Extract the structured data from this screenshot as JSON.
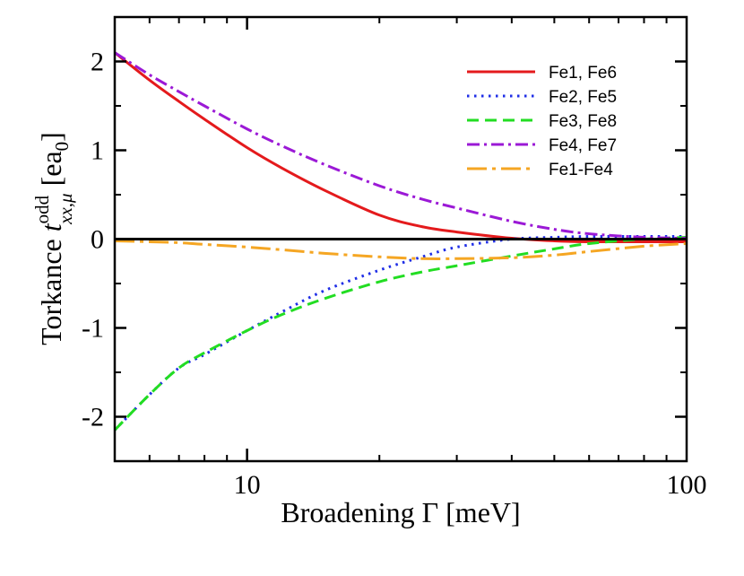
{
  "chart_data": {
    "type": "line",
    "xscale": "log",
    "xlim": [
      5,
      100
    ],
    "ylim": [
      -2.5,
      2.5
    ],
    "xticks": [
      {
        "value": 10,
        "label": "10"
      },
      {
        "value": 100,
        "label": "100"
      }
    ],
    "yticks": [
      {
        "value": 2,
        "label": "2"
      },
      {
        "value": 1,
        "label": "1"
      },
      {
        "value": 0,
        "label": "0"
      },
      {
        "value": -1,
        "label": "-1"
      },
      {
        "value": -2,
        "label": "-2"
      }
    ],
    "xlabel": "Broadening Γ [meV]",
    "ylabel": {
      "prefix": "Torkance ",
      "symbol": "t",
      "superscript": "odd",
      "subscript": "xx,μ",
      "unit_open": " [ea",
      "unit_sub": "0",
      "unit_close": "]"
    },
    "zero_line": true,
    "legend_position": "top-right",
    "series": [
      {
        "name": "Fe1, Fe6",
        "color": "#e41a1c",
        "style": "solid",
        "x": [
          5,
          6,
          7,
          8,
          10,
          12,
          15,
          20,
          25,
          30,
          40,
          50,
          60,
          80,
          100
        ],
        "y": [
          2.1,
          1.79,
          1.55,
          1.35,
          1.03,
          0.8,
          0.55,
          0.27,
          0.14,
          0.08,
          0.01,
          -0.02,
          -0.03,
          -0.03,
          -0.03
        ]
      },
      {
        "name": "Fe2, Fe5",
        "color": "#1f2ee6",
        "style": "dotted",
        "x": [
          5,
          6,
          7,
          8,
          10,
          12,
          15,
          20,
          25,
          30,
          40,
          50,
          60,
          80,
          100
        ],
        "y": [
          -2.15,
          -1.75,
          -1.45,
          -1.3,
          -1.03,
          -0.82,
          -0.58,
          -0.35,
          -0.2,
          -0.09,
          0.0,
          0.02,
          0.03,
          0.03,
          0.03
        ]
      },
      {
        "name": "Fe3, Fe8",
        "color": "#22dd22",
        "style": "dashed",
        "x": [
          5,
          6,
          7,
          8,
          10,
          12,
          15,
          20,
          25,
          30,
          40,
          50,
          60,
          80,
          100
        ],
        "y": [
          -2.15,
          -1.75,
          -1.45,
          -1.28,
          -1.03,
          -0.85,
          -0.67,
          -0.48,
          -0.37,
          -0.3,
          -0.19,
          -0.11,
          -0.05,
          0.0,
          0.02
        ]
      },
      {
        "name": "Fe4, Fe7",
        "color": "#9b19d6",
        "style": "dashdot",
        "x": [
          5,
          6,
          7,
          8,
          10,
          12,
          15,
          20,
          25,
          30,
          40,
          50,
          60,
          80,
          100
        ],
        "y": [
          2.1,
          1.85,
          1.66,
          1.5,
          1.24,
          1.05,
          0.84,
          0.6,
          0.45,
          0.35,
          0.2,
          0.11,
          0.06,
          0.02,
          0.01
        ]
      },
      {
        "name": "Fe1-Fe4",
        "color": "#f5a623",
        "style": "longdashdot",
        "x": [
          5,
          6,
          7,
          8,
          10,
          12,
          15,
          20,
          25,
          30,
          40,
          50,
          60,
          80,
          100
        ],
        "y": [
          -0.02,
          -0.03,
          -0.04,
          -0.06,
          -0.09,
          -0.12,
          -0.16,
          -0.2,
          -0.22,
          -0.22,
          -0.21,
          -0.18,
          -0.14,
          -0.08,
          -0.05
        ]
      }
    ]
  }
}
